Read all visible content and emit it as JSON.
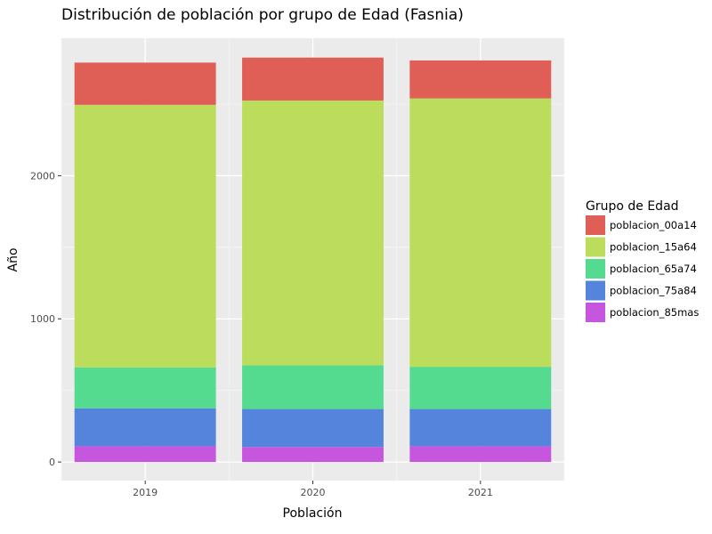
{
  "chart_data": {
    "type": "bar",
    "stacked": true,
    "title": "Distribución de población por grupo de Edad (Fasnia)",
    "xlabel": "Población",
    "ylabel": "Año",
    "categories": [
      "2019",
      "2020",
      "2021"
    ],
    "y_ticks": [
      {
        "value": 0,
        "label": "0"
      },
      {
        "value": 1000,
        "label": "1000"
      },
      {
        "value": 2000,
        "label": "2000"
      }
    ],
    "ylim": [
      -130,
      2960
    ],
    "grid": true,
    "legend": {
      "title": "Grupo de Edad",
      "placement": "right"
    },
    "series": [
      {
        "name": "poblacion_85mas",
        "color": "#c656de",
        "values": [
          110,
          105,
          110
        ]
      },
      {
        "name": "poblacion_75a84",
        "color": "#5484db",
        "values": [
          265,
          265,
          260
        ]
      },
      {
        "name": "poblacion_65a74",
        "color": "#55db90",
        "values": [
          285,
          305,
          295
        ]
      },
      {
        "name": "poblacion_15a64",
        "color": "#bcdc5b",
        "values": [
          1835,
          1850,
          1875
        ]
      },
      {
        "name": "poblacion_00a14",
        "color": "#df5f57",
        "values": [
          295,
          300,
          265
        ]
      }
    ],
    "legend_order": [
      "poblacion_00a14",
      "poblacion_15a64",
      "poblacion_65a74",
      "poblacion_75a84",
      "poblacion_85mas"
    ]
  }
}
